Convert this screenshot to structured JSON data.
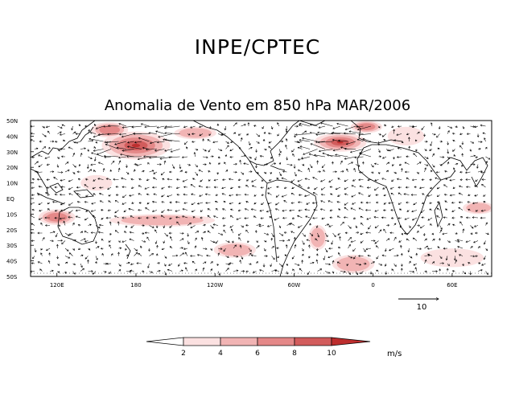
{
  "header": {
    "organization": "INPE/CPTEC",
    "title": "Anomalia de Vento em 850 hPa MAR/2006"
  },
  "map": {
    "latitude_labels": [
      "50N",
      "40N",
      "30N",
      "20N",
      "10N",
      "EQ",
      "10S",
      "20S",
      "30S",
      "40S",
      "50S"
    ],
    "longitude_labels": [
      {
        "label": "120E",
        "lon": 120
      },
      {
        "label": "180",
        "lon": 180
      },
      {
        "label": "120W",
        "lon": 240
      },
      {
        "label": "60W",
        "lon": 300
      },
      {
        "label": "0",
        "lon": 360
      },
      {
        "label": "60E",
        "lon": 420
      }
    ],
    "lon_range": [
      100,
      450
    ],
    "lat_range": [
      -50,
      50
    ]
  },
  "reference_vector": {
    "magnitude": 10,
    "label": "10"
  },
  "colorbar": {
    "ticks": [
      "2",
      "4",
      "6",
      "8",
      "10"
    ],
    "colors": [
      "#ffffff",
      "#fbe1e1",
      "#f1b4b4",
      "#e48888",
      "#d25c5c",
      "#bd2e2e",
      "#a51e1e"
    ],
    "units": "m/s"
  },
  "anomaly_regions": [
    {
      "name": "north-pacific-high",
      "lon": 180,
      "lat": 34,
      "rlon": 26,
      "rlat": 9,
      "level": 5
    },
    {
      "name": "north-atlantic",
      "lon": 335,
      "lat": 36,
      "rlon": 20,
      "rlat": 6,
      "level": 5
    },
    {
      "name": "nw-pacific",
      "lon": 160,
      "lat": 44,
      "rlon": 14,
      "rlat": 5,
      "level": 3
    },
    {
      "name": "east-atlantic",
      "lon": 355,
      "lat": 46,
      "rlon": 12,
      "rlat": 4,
      "level": 3
    },
    {
      "name": "maritime-continent",
      "lon": 120,
      "lat": -12,
      "rlon": 14,
      "rlat": 5,
      "level": 3
    },
    {
      "name": "south-pacific-band",
      "lon": 200,
      "lat": -14,
      "rlon": 40,
      "rlat": 4,
      "level": 2
    },
    {
      "name": "south-indian",
      "lon": 440,
      "lat": -6,
      "rlon": 12,
      "rlat": 4,
      "level": 2
    },
    {
      "name": "south-atlantic",
      "lon": 345,
      "lat": -42,
      "rlon": 16,
      "rlat": 6,
      "level": 2
    },
    {
      "name": "west-pacific-tropics",
      "lon": 150,
      "lat": 10,
      "rlon": 12,
      "rlat": 5,
      "level": 1
    },
    {
      "name": "east-pacific-south",
      "lon": 255,
      "lat": -33,
      "rlon": 16,
      "rlat": 5,
      "level": 2
    },
    {
      "name": "south-america-east",
      "lon": 318,
      "lat": -25,
      "rlon": 7,
      "rlat": 8,
      "level": 2
    },
    {
      "name": "indian-south",
      "lon": 420,
      "lat": -38,
      "rlon": 24,
      "rlat": 6,
      "level": 1
    },
    {
      "name": "north-pacific-east",
      "lon": 225,
      "lat": 42,
      "rlon": 16,
      "rlat": 4,
      "level": 2
    },
    {
      "name": "europe-africa-north",
      "lon": 385,
      "lat": 40,
      "rlon": 14,
      "rlat": 6,
      "level": 1
    }
  ]
}
